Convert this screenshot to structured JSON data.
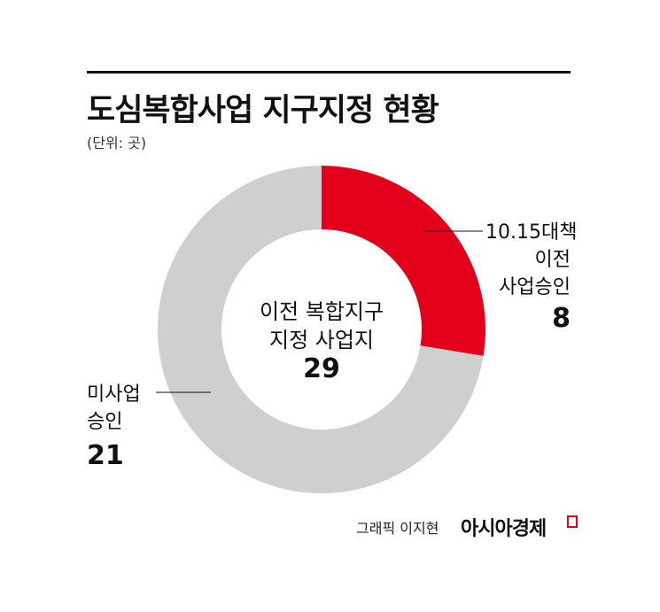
{
  "header": {
    "title": "도심복합사업 지구지정 현황",
    "unit": "(단위: 곳)"
  },
  "chart_data": {
    "type": "pie",
    "donut": true,
    "center_label": [
      "이전 복합지구",
      "지정 사업지"
    ],
    "center_value": "29",
    "slices": [
      {
        "label": [
          "10.15대책",
          "이전",
          "사업승인"
        ],
        "value": 8,
        "value_text": "8",
        "color": "#e2001a"
      },
      {
        "label": [
          "미사업",
          "승인"
        ],
        "value": 21,
        "value_text": "21",
        "color": "#cfcfcf"
      }
    ]
  },
  "footer": {
    "credit": "그래픽 이지현",
    "brand": "아시아경제"
  },
  "colors": {
    "accent": "#e2001a",
    "gray": "#cfcfcf",
    "text": "#111111"
  }
}
